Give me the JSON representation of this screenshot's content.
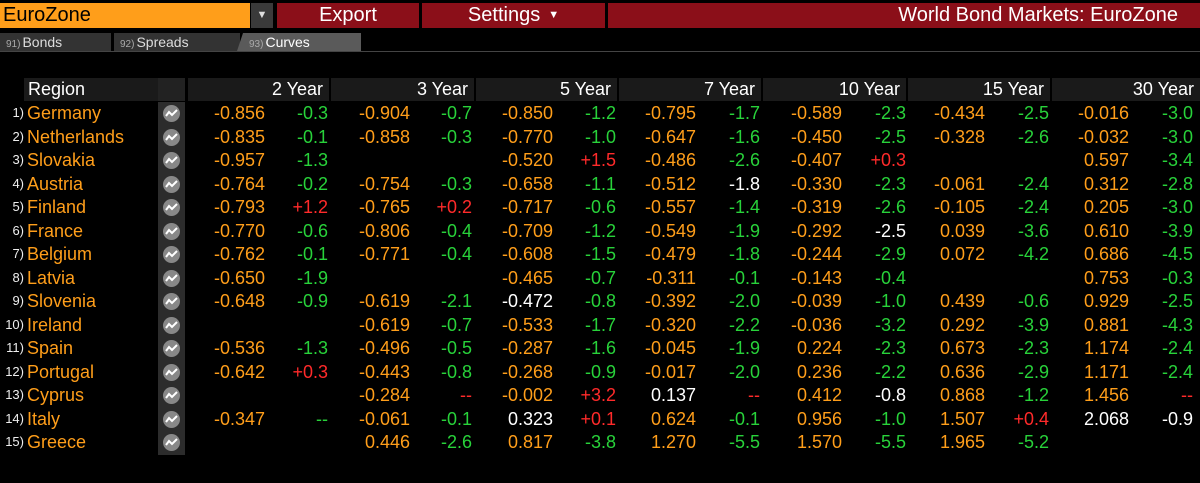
{
  "toolbar": {
    "region": "EuroZone",
    "export": "Export",
    "settings": "Settings",
    "title": "World Bond Markets: EuroZone"
  },
  "tabs": [
    {
      "num": "91)",
      "label": "Bonds"
    },
    {
      "num": "92)",
      "label": "Spreads"
    },
    {
      "num": "93)",
      "label": "Curves"
    }
  ],
  "columns": {
    "region": "Region",
    "tenors": [
      "2 Year",
      "3 Year",
      "5 Year",
      "7 Year",
      "10 Year",
      "15 Year",
      "30 Year"
    ]
  },
  "colors": {
    "yield": "#ff9e1a",
    "up": "#ff2a2a",
    "down": "#28d23a",
    "neutral": "#ffffff",
    "header_bg": "#8b0f19"
  },
  "rows": [
    {
      "num": "1)",
      "name": "Germany",
      "cells": [
        [
          "-0.856",
          "y",
          "-0.3",
          "g"
        ],
        [
          "-0.904",
          "y",
          "-0.7",
          "g"
        ],
        [
          "-0.850",
          "y",
          "-1.2",
          "g"
        ],
        [
          "-0.795",
          "y",
          "-1.7",
          "g"
        ],
        [
          "-0.589",
          "y",
          "-2.3",
          "g"
        ],
        [
          "-0.434",
          "y",
          "-2.5",
          "g"
        ],
        [
          "-0.016",
          "y",
          "-3.0",
          "g"
        ]
      ]
    },
    {
      "num": "2)",
      "name": "Netherlands",
      "cells": [
        [
          "-0.835",
          "y",
          "-0.1",
          "g"
        ],
        [
          "-0.858",
          "y",
          "-0.3",
          "g"
        ],
        [
          "-0.770",
          "y",
          "-1.0",
          "g"
        ],
        [
          "-0.647",
          "y",
          "-1.6",
          "g"
        ],
        [
          "-0.450",
          "y",
          "-2.5",
          "g"
        ],
        [
          "-0.328",
          "y",
          "-2.6",
          "g"
        ],
        [
          "-0.032",
          "y",
          "-3.0",
          "g"
        ]
      ]
    },
    {
      "num": "3)",
      "name": "Slovakia",
      "cells": [
        [
          "-0.957",
          "y",
          "-1.3",
          "g"
        ],
        [
          "",
          "",
          "",
          " "
        ],
        [
          "-0.520",
          "y",
          "+1.5",
          "r"
        ],
        [
          "-0.486",
          "y",
          "-2.6",
          "g"
        ],
        [
          "-0.407",
          "y",
          "+0.3",
          "r"
        ],
        [
          "",
          "",
          "",
          " "
        ],
        [
          "0.597",
          "y",
          "-3.4",
          "g"
        ]
      ]
    },
    {
      "num": "4)",
      "name": "Austria",
      "cells": [
        [
          "-0.764",
          "y",
          "-0.2",
          "g"
        ],
        [
          "-0.754",
          "y",
          "-0.3",
          "g"
        ],
        [
          "-0.658",
          "y",
          "-1.1",
          "g"
        ],
        [
          "-0.512",
          "y",
          "-1.8",
          "w"
        ],
        [
          "-0.330",
          "y",
          "-2.3",
          "g"
        ],
        [
          "-0.061",
          "y",
          "-2.4",
          "g"
        ],
        [
          "0.312",
          "y",
          "-2.8",
          "g"
        ]
      ]
    },
    {
      "num": "5)",
      "name": "Finland",
      "cells": [
        [
          "-0.793",
          "y",
          "+1.2",
          "r"
        ],
        [
          "-0.765",
          "y",
          "+0.2",
          "r"
        ],
        [
          "-0.717",
          "y",
          "-0.6",
          "g"
        ],
        [
          "-0.557",
          "y",
          "-1.4",
          "g"
        ],
        [
          "-0.319",
          "y",
          "-2.6",
          "g"
        ],
        [
          "-0.105",
          "y",
          "-2.4",
          "g"
        ],
        [
          "0.205",
          "y",
          "-3.0",
          "g"
        ]
      ]
    },
    {
      "num": "6)",
      "name": "France",
      "cells": [
        [
          "-0.770",
          "y",
          "-0.6",
          "g"
        ],
        [
          "-0.806",
          "y",
          "-0.4",
          "g"
        ],
        [
          "-0.709",
          "y",
          "-1.2",
          "g"
        ],
        [
          "-0.549",
          "y",
          "-1.9",
          "g"
        ],
        [
          "-0.292",
          "y",
          "-2.5",
          "w"
        ],
        [
          "0.039",
          "y",
          "-3.6",
          "g"
        ],
        [
          "0.610",
          "y",
          "-3.9",
          "g"
        ]
      ]
    },
    {
      "num": "7)",
      "name": "Belgium",
      "cells": [
        [
          "-0.762",
          "y",
          "-0.1",
          "g"
        ],
        [
          "-0.771",
          "y",
          "-0.4",
          "g"
        ],
        [
          "-0.608",
          "y",
          "-1.5",
          "g"
        ],
        [
          "-0.479",
          "y",
          "-1.8",
          "g"
        ],
        [
          "-0.244",
          "y",
          "-2.9",
          "g"
        ],
        [
          "0.072",
          "y",
          "-4.2",
          "g"
        ],
        [
          "0.686",
          "y",
          "-4.5",
          "g"
        ]
      ]
    },
    {
      "num": "8)",
      "name": "Latvia",
      "cells": [
        [
          "-0.650",
          "y",
          "-1.9",
          "g"
        ],
        [
          "",
          "",
          "",
          " "
        ],
        [
          "-0.465",
          "y",
          "-0.7",
          "g"
        ],
        [
          "-0.311",
          "y",
          "-0.1",
          "g"
        ],
        [
          "-0.143",
          "y",
          "-0.4",
          "g"
        ],
        [
          "",
          "",
          "",
          " "
        ],
        [
          "0.753",
          "y",
          "-0.3",
          "g"
        ]
      ]
    },
    {
      "num": "9)",
      "name": "Slovenia",
      "cells": [
        [
          "-0.648",
          "y",
          "-0.9",
          "g"
        ],
        [
          "-0.619",
          "y",
          "-2.1",
          "g"
        ],
        [
          "-0.472",
          "w",
          "-0.8",
          "g"
        ],
        [
          "-0.392",
          "y",
          "-2.0",
          "g"
        ],
        [
          "-0.039",
          "y",
          "-1.0",
          "g"
        ],
        [
          "0.439",
          "y",
          "-0.6",
          "g"
        ],
        [
          "0.929",
          "y",
          "-2.5",
          "g"
        ]
      ]
    },
    {
      "num": "10)",
      "name": "Ireland",
      "cells": [
        [
          "",
          "",
          "",
          " "
        ],
        [
          "-0.619",
          "y",
          "-0.7",
          "g"
        ],
        [
          "-0.533",
          "y",
          "-1.7",
          "g"
        ],
        [
          "-0.320",
          "y",
          "-2.2",
          "g"
        ],
        [
          "-0.036",
          "y",
          "-3.2",
          "g"
        ],
        [
          "0.292",
          "y",
          "-3.9",
          "g"
        ],
        [
          "0.881",
          "y",
          "-4.3",
          "g"
        ]
      ]
    },
    {
      "num": "11)",
      "name": "Spain",
      "cells": [
        [
          "-0.536",
          "y",
          "-1.3",
          "g"
        ],
        [
          "-0.496",
          "y",
          "-0.5",
          "g"
        ],
        [
          "-0.287",
          "y",
          "-1.6",
          "g"
        ],
        [
          "-0.045",
          "y",
          "-1.9",
          "g"
        ],
        [
          "0.224",
          "y",
          "-2.3",
          "g"
        ],
        [
          "0.673",
          "y",
          "-2.3",
          "g"
        ],
        [
          "1.174",
          "y",
          "-2.4",
          "g"
        ]
      ]
    },
    {
      "num": "12)",
      "name": "Portugal",
      "cells": [
        [
          "-0.642",
          "y",
          "+0.3",
          "r"
        ],
        [
          "-0.443",
          "y",
          "-0.8",
          "g"
        ],
        [
          "-0.268",
          "y",
          "-0.9",
          "g"
        ],
        [
          "-0.017",
          "y",
          "-2.0",
          "g"
        ],
        [
          "0.236",
          "y",
          "-2.2",
          "g"
        ],
        [
          "0.636",
          "y",
          "-2.9",
          "g"
        ],
        [
          "1.171",
          "y",
          "-2.4",
          "g"
        ]
      ]
    },
    {
      "num": "13)",
      "name": "Cyprus",
      "cells": [
        [
          "",
          "",
          "",
          " "
        ],
        [
          "-0.284",
          "y",
          "--",
          "r"
        ],
        [
          "-0.002",
          "y",
          "+3.2",
          "r"
        ],
        [
          "0.137",
          "w",
          "--",
          "r"
        ],
        [
          "0.412",
          "y",
          "-0.8",
          "w"
        ],
        [
          "0.868",
          "y",
          "-1.2",
          "g"
        ],
        [
          "1.456",
          "y",
          "--",
          "r"
        ]
      ]
    },
    {
      "num": "14)",
      "name": "Italy",
      "cells": [
        [
          "-0.347",
          "y",
          "--",
          "g"
        ],
        [
          "-0.061",
          "y",
          "-0.1",
          "g"
        ],
        [
          "0.323",
          "w",
          "+0.1",
          "r"
        ],
        [
          "0.624",
          "y",
          "-0.1",
          "g"
        ],
        [
          "0.956",
          "y",
          "-1.0",
          "g"
        ],
        [
          "1.507",
          "y",
          "+0.4",
          "r"
        ],
        [
          "2.068",
          "w",
          "-0.9",
          "w"
        ]
      ]
    },
    {
      "num": "15)",
      "name": "Greece",
      "cells": [
        [
          "",
          "",
          "",
          " "
        ],
        [
          "0.446",
          "y",
          "-2.6",
          "g"
        ],
        [
          "0.817",
          "y",
          "-3.8",
          "g"
        ],
        [
          "1.270",
          "y",
          "-5.5",
          "g"
        ],
        [
          "1.570",
          "y",
          "-5.5",
          "g"
        ],
        [
          "1.965",
          "y",
          "-5.2",
          "g"
        ],
        [
          "",
          "",
          "",
          " "
        ]
      ]
    }
  ]
}
